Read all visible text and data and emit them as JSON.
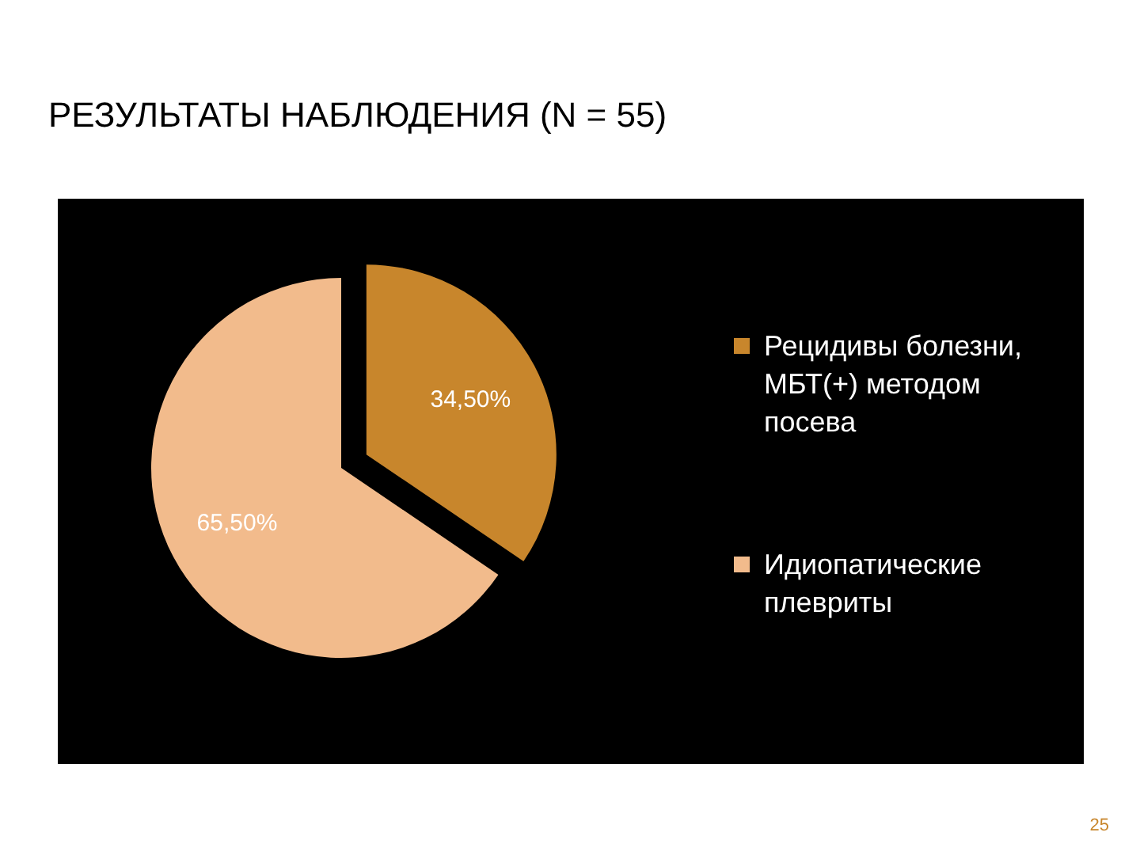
{
  "chart_data": {
    "type": "pie",
    "title": "РЕЗУЛЬТАТЫ НАБЛЮДЕНИЯ (N = 55)",
    "categories": [
      "Рецидивы болезни, МБТ(+) методом посева",
      "Идиопатические плевриты"
    ],
    "values": [
      34.5,
      65.5
    ],
    "value_labels": [
      "34,50%",
      "65,50%"
    ],
    "colors": [
      "#c8862c",
      "#f2bb8c"
    ],
    "legend": "right",
    "annotations": [
      "25"
    ]
  }
}
